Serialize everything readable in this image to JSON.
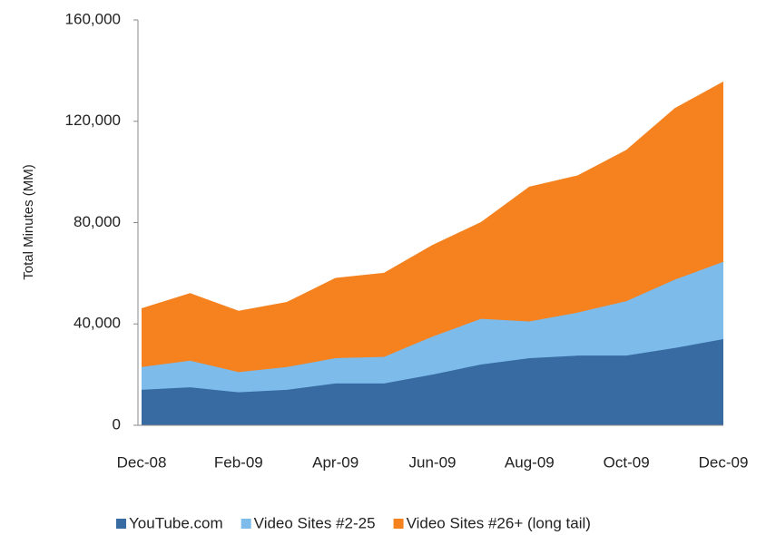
{
  "chart_data": {
    "type": "stacked_area",
    "y_label": "Total Minutes (MM)",
    "categories": [
      "Dec-08",
      null,
      "Feb-09",
      null,
      "Apr-09",
      null,
      "Jun-09",
      null,
      "Aug-09",
      null,
      "Oct-09",
      null,
      "Dec-09"
    ],
    "series": [
      {
        "name": "YouTube.com",
        "color": "#376ba2",
        "values": [
          14000,
          15000,
          13000,
          14000,
          16500,
          16500,
          20000,
          24000,
          26500,
          27500,
          27500,
          30500,
          34000
        ]
      },
      {
        "name": "Video Sites #2-25",
        "color": "#7dbbea",
        "values": [
          9000,
          10500,
          8000,
          9000,
          10000,
          10500,
          15000,
          18000,
          14500,
          17000,
          21500,
          27000,
          30500
        ]
      },
      {
        "name": "Video Sites #26+ (long tail)",
        "color": "#f5821f",
        "values": [
          23000,
          26500,
          24000,
          25500,
          31500,
          33000,
          36000,
          38000,
          53000,
          54000,
          59500,
          67500,
          71000
        ]
      }
    ],
    "ylim": [
      0,
      160000
    ],
    "yticks": [
      0,
      {
        "value": 40000,
        "label": "40,000"
      },
      {
        "value": 80000,
        "label": "80,000"
      },
      {
        "value": 120000,
        "label": "120,000"
      },
      {
        "value": 160000,
        "label": "160,000"
      }
    ]
  }
}
